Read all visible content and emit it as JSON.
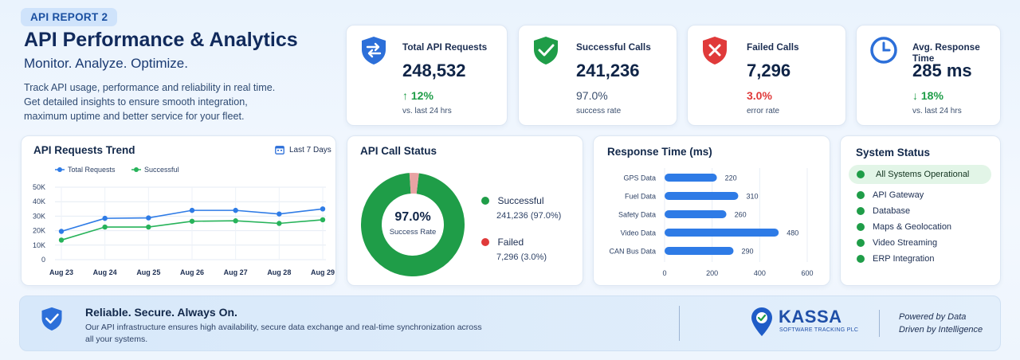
{
  "hero": {
    "badge": "API REPORT 2",
    "title": "API Performance & Analytics",
    "subtitle": "Monitor. Analyze. Optimize.",
    "description": "Track API usage, performance and reliability in real time. Get detailed insights to ensure smooth integration, maximum uptime and better service for your fleet."
  },
  "stats": [
    {
      "label": "Total API Requests",
      "value": "248,532",
      "change": "↑ 12%",
      "note": "vs. last 24 hrs",
      "icon": "shield-arrows-icon",
      "change_color": "#1f9d48"
    },
    {
      "label": "Successful Calls",
      "value": "241,236",
      "change": "97.0%",
      "note": "success rate",
      "icon": "shield-check-icon",
      "change_color": "#3b4f6e"
    },
    {
      "label": "Failed Calls",
      "value": "7,296",
      "change": "3.0%",
      "note": "error rate",
      "icon": "shield-x-icon",
      "change_color": "#e03a3a"
    },
    {
      "label": "Avg. Response Time",
      "value": "285 ms",
      "change": "↓ 18%",
      "note": "vs. last 24 hrs",
      "icon": "clock-icon",
      "change_color": "#1f9d48"
    }
  ],
  "trend": {
    "title": "API Requests Trend",
    "range": "Last 7 Days",
    "chart_data": {
      "type": "line",
      "categories": [
        "Aug 23",
        "Aug 24",
        "Aug 25",
        "Aug 26",
        "Aug 27",
        "Aug 28",
        "Aug 29"
      ],
      "series": [
        {
          "name": "Total Requests",
          "values": [
            19500,
            28500,
            28800,
            34000,
            34000,
            31500,
            35000
          ],
          "color": "#2e7be6"
        },
        {
          "name": "Successful",
          "values": [
            13500,
            22500,
            22500,
            26500,
            26800,
            25000,
            27500
          ],
          "color": "#27b35a"
        }
      ],
      "ylim": [
        0,
        50000
      ],
      "yticks": [
        "0",
        "10K",
        "20K",
        "30K",
        "40K",
        "50K"
      ]
    }
  },
  "status": {
    "title": "API Call Status",
    "center_value": "97.0%",
    "center_label": "Success Rate",
    "chart_data": {
      "type": "pie",
      "slices": [
        {
          "name": "Successful",
          "value": 241236,
          "detail": "241,236 (97.0%)",
          "color": "#1f9d48"
        },
        {
          "name": "Failed",
          "value": 7296,
          "detail": "7,296 (3.0%)",
          "color": "#e8a3a3"
        }
      ]
    },
    "legend_dot_colors": [
      "#1f9d48",
      "#e03a3a"
    ]
  },
  "response": {
    "title": "Response Time (ms)",
    "chart_data": {
      "type": "bar",
      "categories": [
        "GPS Data",
        "Fuel Data",
        "Safety Data",
        "Video Data",
        "CAN Bus Data"
      ],
      "values": [
        220,
        310,
        260,
        480,
        290
      ],
      "xlim": [
        0,
        600
      ],
      "xticks": [
        "0",
        "200",
        "400",
        "600"
      ],
      "color": "#2e7be6"
    }
  },
  "system": {
    "title": "System Status",
    "headline": "All Systems Operational",
    "items": [
      "API Gateway",
      "Database",
      "Maps & Geolocation",
      "Video Streaming",
      "ERP Integration"
    ]
  },
  "footer": {
    "title": "Reliable. Secure. Always On.",
    "text": "Our API infrastructure ensures high availability, secure data exchange and real-time synchronization across all your systems.",
    "brand": "KASSA",
    "brand_sub": "SOFTWARE TRACKING PLC",
    "tagline_1": "Powered by Data",
    "tagline_2": "Driven by Intelligence"
  }
}
